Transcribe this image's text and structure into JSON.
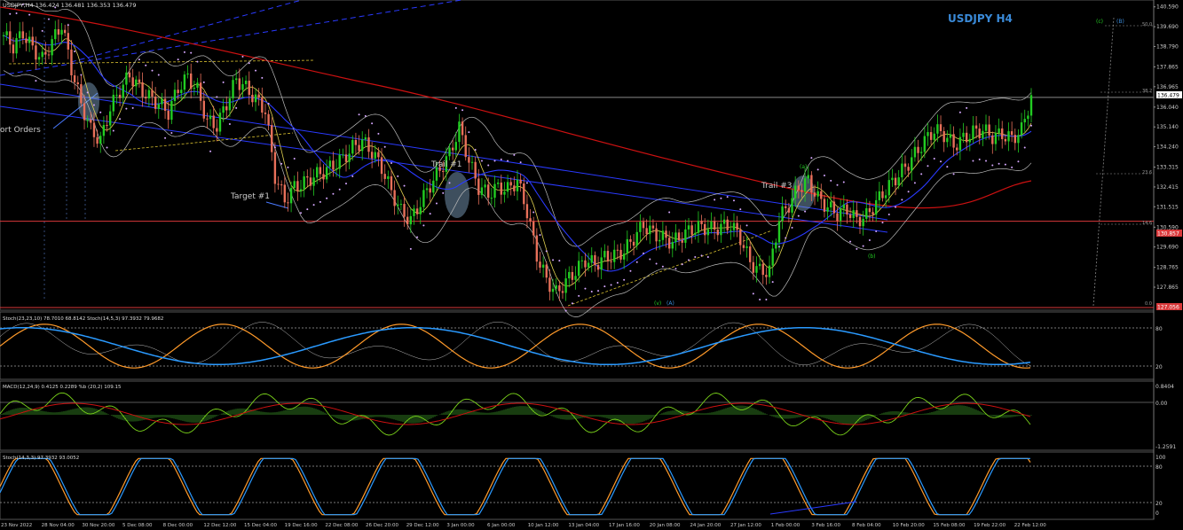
{
  "window": {
    "title": "USDJPY,H4",
    "ohlc": "136.424 136.481 136.353 136.479",
    "watermark": "USDJPY H4"
  },
  "price_panel": {
    "annotations": [
      {
        "text": "ort Orders"
      },
      {
        "text": "Target #1"
      },
      {
        "text": "Trail #1"
      },
      {
        "text": "Trail #3"
      }
    ],
    "wave_labels": [
      "(a)",
      "(b)",
      "(v)",
      "(A)",
      "(c)",
      "(B)"
    ],
    "fib_levels": [
      "50.0",
      "38.2",
      "23.6",
      "14.6",
      "0.0"
    ],
    "current_price": "136.479",
    "level_price": "130.857",
    "low_price": "127.056"
  },
  "panels": {
    "stoch1": {
      "label": "Stoch(23,23,10) 78.7010 68.8142  Stoch(14,5,3) 97.3932 79.9682",
      "levels": [
        "80",
        "20"
      ]
    },
    "macd": {
      "label": "MACD(12,24,9) 0.4125 0.2289  %b (20,2) 109.15",
      "levels": [
        "0.8404",
        "0.00",
        "-1.2591"
      ]
    },
    "stoch2": {
      "label": "Stoch(14,3,3) 97.3932 93.0052",
      "levels": [
        "100",
        "80",
        "20",
        "0"
      ]
    }
  },
  "colors": {
    "bull": "#22cc22",
    "bear": "#e8705a",
    "grid": "#5a6a8a",
    "blue_ma": "#2a3aff",
    "red_ma": "#cc1111",
    "stoch_orange": "#ff9a2a",
    "stoch_blue": "#2a9aff",
    "macd_green": "#7ad31a",
    "watermark": "#3a8ad8"
  },
  "chart_data": {
    "type": "candlestick",
    "symbol": "USDJPY",
    "timeframe": "H4",
    "price_axis": [
      "140.590",
      "139.690",
      "138.790",
      "137.865",
      "136.965",
      "136.040",
      "135.140",
      "134.240",
      "133.315",
      "132.415",
      "131.515",
      "130.590",
      "129.690",
      "128.765",
      "127.865"
    ],
    "ylim": [
      126.9,
      140.7
    ],
    "time_axis": [
      "23 Nov 2022",
      "28 Nov 04:00",
      "30 Nov 20:00",
      "5 Dec 08:00",
      "8 Dec 00:00",
      "12 Dec 12:00",
      "15 Dec 04:00",
      "19 Dec 16:00",
      "22 Dec 08:00",
      "26 Dec 20:00",
      "29 Dec 12:00",
      "3 Jan 00:00",
      "6 Jan 00:00",
      "10 Jan 12:00",
      "13 Jan 04:00",
      "17 Jan 16:00",
      "20 Jan 08:00",
      "24 Jan 20:00",
      "27 Jan 12:00",
      "1 Feb 00:00",
      "3 Feb 16:00",
      "8 Feb 04:00",
      "10 Feb 20:00",
      "15 Feb 08:00",
      "19 Feb 22:00",
      "22 Feb 12:00"
    ],
    "close_path": [
      [
        0,
        139.3
      ],
      [
        3,
        138.8
      ],
      [
        6,
        139.4
      ],
      [
        9,
        138.7
      ],
      [
        12,
        138.2
      ],
      [
        15,
        139.0
      ],
      [
        18,
        139.8
      ],
      [
        21,
        137.8
      ],
      [
        24,
        136.2
      ],
      [
        27,
        135.0
      ],
      [
        30,
        134.5
      ],
      [
        33,
        136.0
      ],
      [
        36,
        136.8
      ],
      [
        39,
        137.5
      ],
      [
        42,
        136.9
      ],
      [
        45,
        136.5
      ],
      [
        48,
        136.2
      ],
      [
        51,
        135.8
      ],
      [
        54,
        136.9
      ],
      [
        57,
        137.4
      ],
      [
        60,
        136.8
      ],
      [
        63,
        135.4
      ],
      [
        66,
        135.2
      ],
      [
        69,
        136.2
      ],
      [
        72,
        137.3
      ],
      [
        75,
        136.9
      ],
      [
        78,
        136.4
      ],
      [
        81,
        135.9
      ],
      [
        84,
        132.9
      ],
      [
        87,
        131.8
      ],
      [
        90,
        132.4
      ],
      [
        93,
        132.6
      ],
      [
        96,
        132.9
      ],
      [
        99,
        133.1
      ],
      [
        102,
        133.4
      ],
      [
        105,
        133.7
      ],
      [
        108,
        134.2
      ],
      [
        111,
        134.5
      ],
      [
        114,
        134.0
      ],
      [
        117,
        133.3
      ],
      [
        120,
        132.2
      ],
      [
        123,
        131.3
      ],
      [
        126,
        130.9
      ],
      [
        129,
        131.7
      ],
      [
        132,
        132.5
      ],
      [
        135,
        133.2
      ],
      [
        138,
        133.9
      ],
      [
        141,
        135.1
      ],
      [
        144,
        133.6
      ],
      [
        147,
        132.4
      ],
      [
        150,
        132.1
      ],
      [
        153,
        132.4
      ],
      [
        156,
        132.3
      ],
      [
        159,
        132.7
      ],
      [
        162,
        131.3
      ],
      [
        165,
        129.3
      ],
      [
        168,
        128.2
      ],
      [
        171,
        127.6
      ],
      [
        174,
        128.1
      ],
      [
        177,
        128.6
      ],
      [
        180,
        129.1
      ],
      [
        183,
        128.9
      ],
      [
        186,
        129.2
      ],
      [
        189,
        129.3
      ],
      [
        192,
        129.5
      ],
      [
        195,
        130.1
      ],
      [
        198,
        130.7
      ],
      [
        201,
        130.3
      ],
      [
        204,
        130.1
      ],
      [
        207,
        129.9
      ],
      [
        210,
        130.2
      ],
      [
        213,
        130.5
      ],
      [
        216,
        130.6
      ],
      [
        219,
        130.5
      ],
      [
        222,
        130.6
      ],
      [
        225,
        130.7
      ],
      [
        228,
        130.1
      ],
      [
        231,
        129.0
      ],
      [
        234,
        128.6
      ],
      [
        237,
        128.6
      ],
      [
        240,
        131.0
      ],
      [
        243,
        131.6
      ],
      [
        246,
        132.4
      ],
      [
        249,
        132.7
      ],
      [
        252,
        131.9
      ],
      [
        255,
        131.5
      ],
      [
        258,
        131.2
      ],
      [
        261,
        131.4
      ],
      [
        264,
        130.9
      ],
      [
        267,
        131.1
      ],
      [
        270,
        131.7
      ],
      [
        273,
        132.3
      ],
      [
        276,
        132.8
      ],
      [
        279,
        133.3
      ],
      [
        282,
        133.9
      ],
      [
        285,
        134.5
      ],
      [
        288,
        135.0
      ],
      [
        291,
        134.8
      ],
      [
        294,
        134.3
      ],
      [
        297,
        134.6
      ],
      [
        300,
        134.9
      ],
      [
        303,
        135.0
      ],
      [
        306,
        134.7
      ],
      [
        309,
        134.8
      ],
      [
        312,
        134.6
      ],
      [
        315,
        135.0
      ],
      [
        318,
        136.5
      ]
    ],
    "series": [
      {
        "name": "Stoch(23,23,10)",
        "last": 78.701
      },
      {
        "name": "Stoch(14,5,3)",
        "last": 97.3932
      },
      {
        "name": "MACD(12,24,9)",
        "last": 0.4125
      },
      {
        "name": "%b (20,2)",
        "last": 109.15
      },
      {
        "name": "Stoch(14,3,3)",
        "last": 97.3932
      }
    ]
  }
}
